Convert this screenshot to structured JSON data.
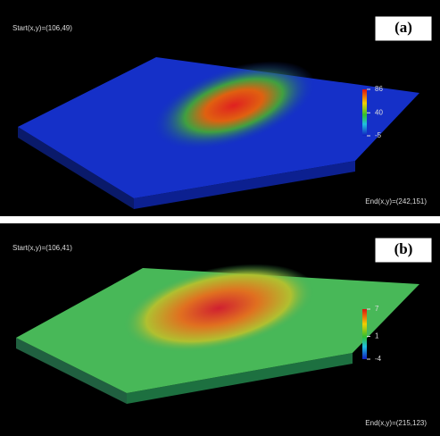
{
  "chart_data": [
    {
      "type": "surface",
      "panel_label": "(a)",
      "start_label": "Start(x,y)=(106,49)",
      "end_label": "End(x,y)=(242,151)",
      "clim": [
        -5,
        86
      ],
      "cticks": [
        86,
        40,
        -5
      ]
    },
    {
      "type": "surface",
      "panel_label": "(b)",
      "start_label": "Start(x,y)=(106,41)",
      "end_label": "End(x,y)=(215,123)",
      "clim": [
        -4,
        7
      ],
      "cticks": [
        7,
        1,
        -4
      ]
    }
  ]
}
